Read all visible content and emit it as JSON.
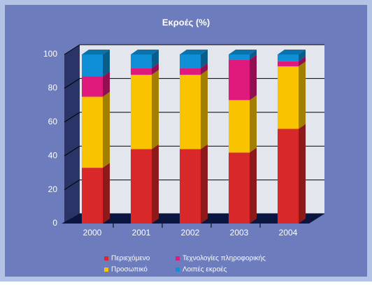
{
  "chart_data": {
    "type": "bar",
    "stacked": true,
    "title": "Εκροές (%)",
    "categories": [
      "2000",
      "2001",
      "2002",
      "2003",
      "2004"
    ],
    "series": [
      {
        "name": "Περιεχόμενο",
        "color": "#d8282a",
        "values": [
          33,
          44,
          44,
          42,
          56
        ]
      },
      {
        "name": "Προσωπικό",
        "color": "#f9c300",
        "values": [
          42,
          44,
          44,
          31,
          37
        ]
      },
      {
        "name": "Τεχνολογίες πληροφορικής",
        "color": "#e0197d",
        "values": [
          12,
          4,
          4,
          24,
          3
        ]
      },
      {
        "name": "Λοιπές εκροές",
        "color": "#0e8fd6",
        "values": [
          13,
          8,
          8,
          3,
          4
        ]
      }
    ],
    "ylim": [
      0,
      100
    ],
    "yticks": [
      0,
      20,
      40,
      60,
      80,
      100
    ],
    "grid": true
  }
}
